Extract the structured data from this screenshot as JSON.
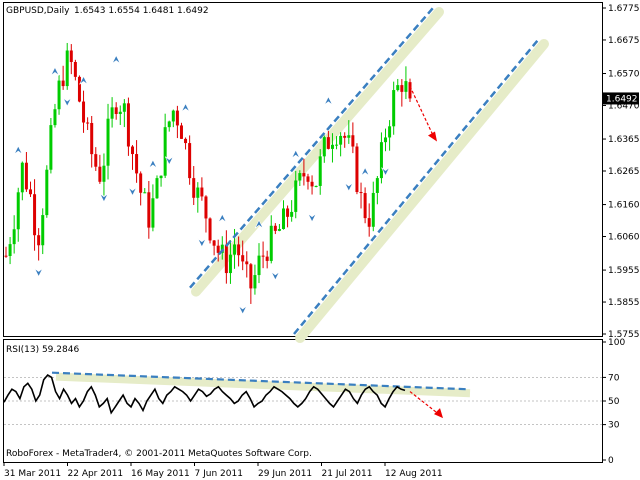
{
  "header": {
    "symbol_tf": "GBPUSD,Daily",
    "ohlc": "1.6543 1.6554 1.6481 1.6492"
  },
  "price_axis_ticks": [
    "1.6775",
    "1.6675",
    "1.6570",
    "1.6470",
    "1.6365",
    "1.6265",
    "1.6160",
    "1.6060",
    "1.5955",
    "1.5855",
    "1.5755"
  ],
  "current_price_label": "1.6492",
  "rsi": {
    "label": "RSI(13) 59.2846",
    "ticks": [
      "100",
      "70",
      "50",
      "30",
      "0"
    ]
  },
  "footer": "RoboForex - MetaTrader4, © 2001-2011 MetaQuotes Software Corp.",
  "time_axis_labels": [
    "31 Mar 2011",
    "22 Apr 2011",
    "16 May 2011",
    "7 Jun 2011",
    "29 Jun 2011",
    "21 Jul 2011",
    "12 Aug 2011"
  ],
  "colors": {
    "bull": "#00cc00",
    "bear": "#dd0000",
    "channel": "#3a7fc0",
    "channel_glow": "#e6ecc8",
    "fractal": "#3a7fc0",
    "forecast": "#ee0000",
    "rsi_line": "#000000"
  },
  "chart_data": [
    {
      "type": "candlestick",
      "title": "GBPUSD,Daily",
      "ylim": [
        1.5755,
        1.6775
      ],
      "x": [
        "31 Mar 2011",
        "22 Apr 2011",
        "16 May 2011",
        "7 Jun 2011",
        "29 Jun 2011",
        "21 Jul 2011",
        "12 Aug 2011"
      ],
      "close_path": [
        1.6,
        1.612,
        1.628,
        1.62,
        1.605,
        1.622,
        1.643,
        1.656,
        1.662,
        1.652,
        1.64,
        1.63,
        1.625,
        1.64,
        1.65,
        1.645,
        1.632,
        1.62,
        1.612,
        1.62,
        1.636,
        1.646,
        1.642,
        1.63,
        1.62,
        1.615,
        1.607,
        1.6,
        1.598,
        1.605,
        1.594,
        1.59,
        1.598,
        1.603,
        1.606,
        1.61,
        1.616,
        1.622,
        1.628,
        1.622,
        1.632,
        1.638,
        1.64,
        1.636,
        1.628,
        1.615,
        1.612,
        1.625,
        1.64,
        1.65,
        1.655,
        1.649
      ],
      "last_ohlc": {
        "open": 1.6543,
        "high": 1.6554,
        "low": 1.6481,
        "close": 1.6492
      },
      "channel": {
        "upper": {
          "from": {
            "x": "7 Jun 2011",
            "y": 1.59
          },
          "to": {
            "x": "after 12 Aug 2011",
            "y": 1.6775
          }
        },
        "lower": {
          "from": {
            "x": "29 Jun 2011",
            "y": 1.5755
          },
          "to": {
            "x": "after 12 Aug 2011",
            "y": 1.6675
          }
        }
      },
      "forecast_arrow": {
        "from": 1.653,
        "to": 1.637
      }
    },
    {
      "type": "line",
      "title": "RSI(13) 59.2846",
      "ylim": [
        0,
        100
      ],
      "levels": [
        30,
        50,
        70
      ],
      "current_value": 59.2846,
      "series": [
        {
          "values": [
            49,
            55,
            60,
            58,
            52,
            62,
            65,
            60,
            50,
            55,
            68,
            72,
            70,
            58,
            52,
            60,
            55,
            48,
            52,
            45,
            50,
            58,
            62,
            55,
            45,
            48,
            52,
            40,
            45,
            50,
            55,
            48,
            45,
            52,
            48,
            42,
            50,
            55,
            60,
            52,
            48,
            55,
            58,
            62,
            60,
            58,
            55,
            50,
            55,
            60,
            58,
            54,
            56,
            60,
            62,
            58,
            55,
            52,
            48,
            50,
            55,
            58,
            52,
            45,
            48,
            50,
            55,
            58,
            62,
            60,
            58,
            55,
            52,
            48,
            45,
            48,
            52,
            58,
            62,
            60,
            56,
            52,
            48,
            45,
            50,
            55,
            60,
            58,
            52,
            48,
            55,
            60,
            62,
            58,
            55,
            48,
            45,
            52,
            58,
            62,
            60,
            59
          ]
        }
      ],
      "trendline": {
        "from": 74,
        "to": 60
      },
      "forecast_arrow": {
        "from": 58,
        "to": 38
      }
    }
  ]
}
